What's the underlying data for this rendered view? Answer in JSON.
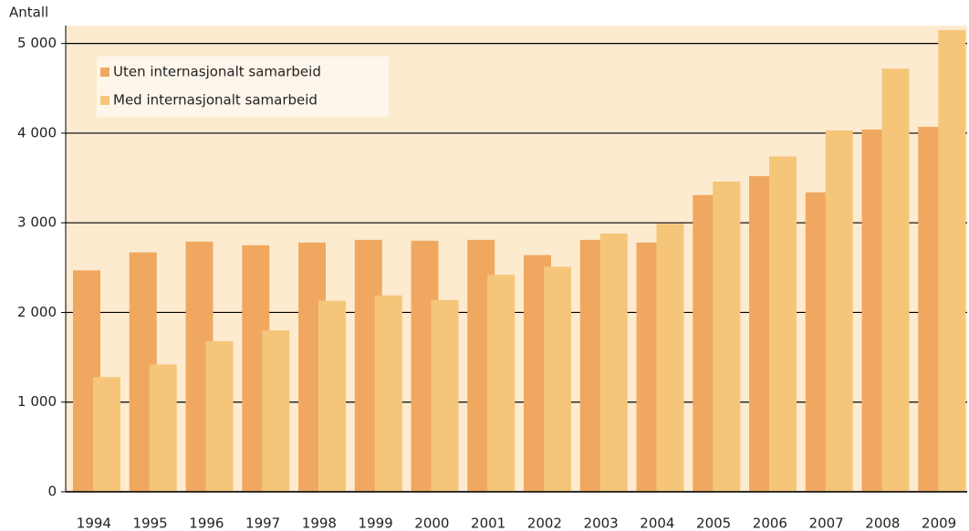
{
  "chart_data": {
    "type": "bar",
    "y_label": "Antall",
    "categories": [
      "1994",
      "1995",
      "1996",
      "1997",
      "1998",
      "1999",
      "2000",
      "2001",
      "2002",
      "2003",
      "2004",
      "2005",
      "2006",
      "2007",
      "2008",
      "2009"
    ],
    "series": [
      {
        "name": "Uten internasjonalt samarbeid",
        "color": "#f0a860",
        "values": [
          2470,
          2670,
          2790,
          2750,
          2780,
          2810,
          2800,
          2810,
          2640,
          2810,
          2780,
          3310,
          3520,
          3340,
          4040,
          4070
        ]
      },
      {
        "name": "Med internasjonalt samarbeid",
        "color": "#f5c67a",
        "values": [
          1280,
          1420,
          1680,
          1800,
          2130,
          2190,
          2140,
          2420,
          2510,
          2880,
          2990,
          3460,
          3740,
          4030,
          4720,
          5150
        ]
      }
    ],
    "ylim": [
      0,
      5200
    ],
    "yticks": [
      0,
      {
        "value": 1000,
        "label": "1 000"
      },
      {
        "value": 2000,
        "label": "2 000"
      },
      {
        "value": 3000,
        "label": "3 000"
      },
      {
        "value": 4000,
        "label": "4 000"
      },
      {
        "value": 5000,
        "label": "5 000"
      }
    ],
    "grid": true,
    "legend": "upper left",
    "background": "#fdebd0"
  }
}
